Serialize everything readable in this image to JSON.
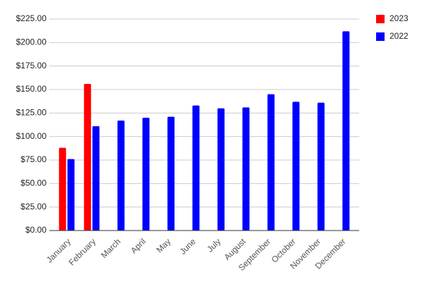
{
  "chart_data": {
    "type": "bar",
    "categories": [
      "January",
      "February",
      "March",
      "April",
      "May",
      "June",
      "July",
      "August",
      "September",
      "October",
      "November",
      "December"
    ],
    "series": [
      {
        "name": "2023",
        "color": "#ff0000",
        "values": [
          88,
          156,
          null,
          null,
          null,
          null,
          null,
          null,
          null,
          null,
          null,
          null
        ]
      },
      {
        "name": "2022",
        "color": "#0000ff",
        "values": [
          76,
          111,
          117,
          120,
          121,
          133,
          130,
          131,
          145,
          137,
          136,
          212
        ]
      }
    ],
    "ylim": [
      0,
      225
    ],
    "yticks": [
      {
        "value": 0,
        "label": "$0.00"
      },
      {
        "value": 25,
        "label": "$25.00"
      },
      {
        "value": 50,
        "label": "$50.00"
      },
      {
        "value": 75,
        "label": "$75.00"
      },
      {
        "value": 100,
        "label": "$100.00"
      },
      {
        "value": 125,
        "label": "$125.00"
      },
      {
        "value": 150,
        "label": "$150.00"
      },
      {
        "value": 175,
        "label": "$175.00"
      },
      {
        "value": 200,
        "label": "$200.00"
      },
      {
        "value": 225,
        "label": "$225.00"
      }
    ],
    "grid": true,
    "legend": "top-right"
  }
}
